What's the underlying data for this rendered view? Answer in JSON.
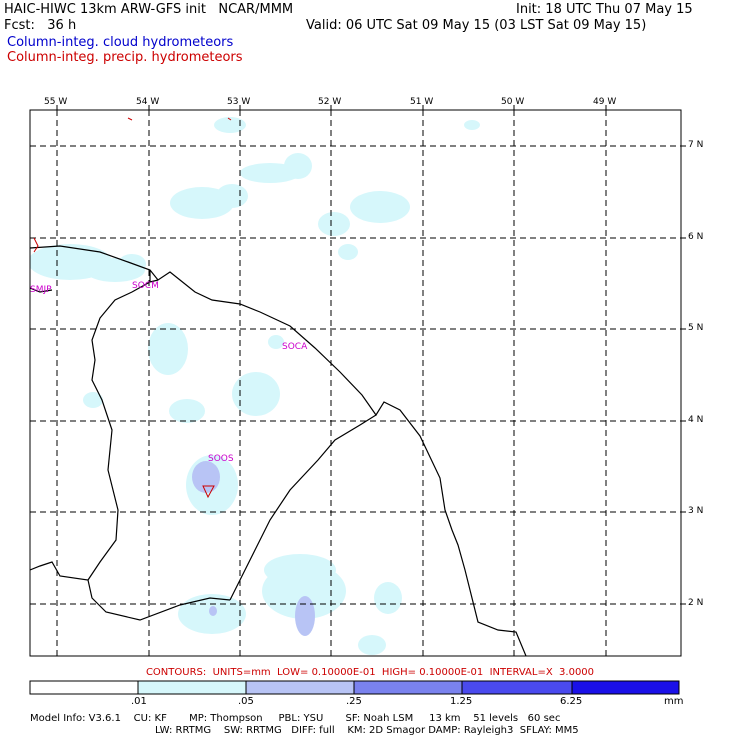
{
  "header": {
    "title": "HAIC-HIWC 13km ARW-GFS init   NCAR/MMM",
    "init": "Init: 18 UTC Thu 07 May 15",
    "fcst": "Fcst:   36 h",
    "valid": "Valid: 06 UTC Sat 09 May 15 (03 LST Sat 09 May 15)",
    "field1": "Column-integ. cloud hydrometeors",
    "field2": "Column-integ. precip. hydrometeors"
  },
  "colors": {
    "cloud_label": "#0000cc",
    "precip_label": "#cc0000",
    "station": "#cc00cc"
  },
  "longitudes": [
    "55 W",
    "54 W",
    "53 W",
    "52 W",
    "51 W",
    "50 W",
    "49 W"
  ],
  "latitudes": [
    "7 N",
    "6 N",
    "5 N",
    "4 N",
    "3 N",
    "2 N"
  ],
  "stations": [
    "SMJP",
    "SOCM",
    "SOCA",
    "SOOS"
  ],
  "contours": "CONTOURS:  UNITS=mm  LOW= 0.10000E-01  HIGH= 0.10000E-01  INTERVAL=X  3.0000",
  "colorbar": {
    "ticks": [
      ".01",
      ".05",
      ".25",
      "1.25",
      "6.25",
      "mm"
    ],
    "colors": [
      "#ffffff",
      "#d6f7fb",
      "#b8c4f5",
      "#7a82ee",
      "#4a4aee",
      "#1a10e8"
    ]
  },
  "model_info": {
    "line1": "Model Info: V3.6.1    CU: KF       MP: Thompson     PBL: YSU       SF: Noah LSM     13 km    51 levels   60 sec",
    "line2": "LW: RRTMG    SW: RRTMG   DIFF: full    KM: 2D Smagor DAMP: Rayleigh3  SFLAY: MM5"
  }
}
